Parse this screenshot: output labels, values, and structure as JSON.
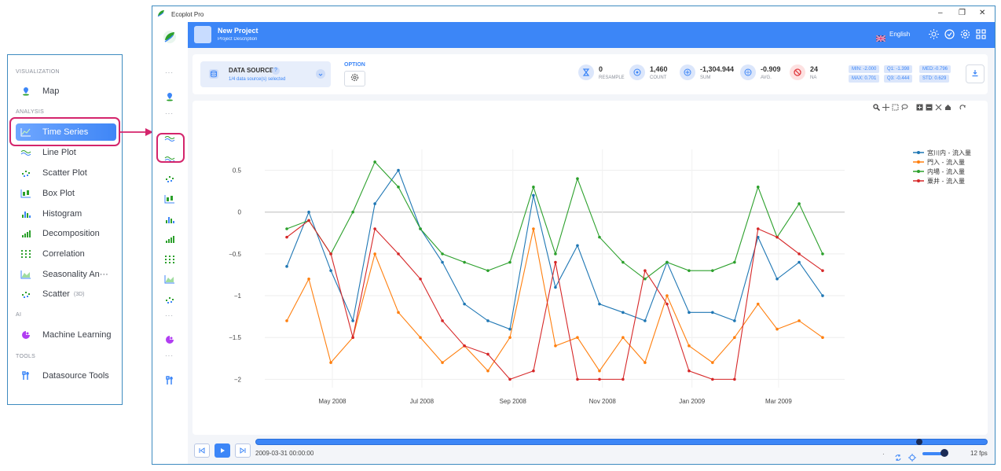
{
  "menu": {
    "sections": {
      "visualization": "VISUALIZATION",
      "analysis": "ANALYSIS",
      "ai": "AI",
      "tools": "TOOLS"
    },
    "items": [
      {
        "label": "Map",
        "icon": "map-pin-icon"
      },
      {
        "label": "Time Series",
        "icon": "time-series-icon",
        "active": true
      },
      {
        "label": "Line Plot",
        "icon": "line-plot-icon"
      },
      {
        "label": "Scatter Plot",
        "icon": "scatter-plot-icon"
      },
      {
        "label": "Box Plot",
        "icon": "box-plot-icon"
      },
      {
        "label": "Histogram",
        "icon": "histogram-icon"
      },
      {
        "label": "Decomposition",
        "icon": "decomposition-icon"
      },
      {
        "label": "Correlation",
        "icon": "correlation-icon"
      },
      {
        "label": "Seasonality An···",
        "icon": "seasonality-icon"
      },
      {
        "label": "Scatter",
        "badge": "(3D)",
        "icon": "scatter-3d-icon"
      },
      {
        "label": "Machine Learning",
        "icon": "machine-learning-icon"
      },
      {
        "label": "Datasource Tools",
        "icon": "datasource-tools-icon"
      }
    ]
  },
  "window": {
    "title": "Ecoplot Pro",
    "controls": {
      "minimize": "–",
      "restore": "❐",
      "close": "✕"
    }
  },
  "header": {
    "project_title": "New Project",
    "project_desc": "Project Description",
    "language": "English"
  },
  "toolbar": {
    "datasource_title": "DATA SOURCE",
    "datasource_badge": "?",
    "datasource_sub": "1/4 data source(s) selected",
    "option_label": "OPTION",
    "stats": [
      {
        "value": "0",
        "label": "RESAMPLE"
      },
      {
        "value": "1,460",
        "label": "COUNT"
      },
      {
        "value": "-1,304.944",
        "label": "SUM"
      },
      {
        "value": "-0.909",
        "label": "AVG."
      },
      {
        "value": "24",
        "label": "NA"
      }
    ],
    "summary": {
      "min": "MIN: -2.000",
      "q1": "Q1: -1.398",
      "med": "MED:-0.796",
      "max": "MAX: 0.701",
      "q3": "Q3: -0.444",
      "std": "STD: 0.629"
    }
  },
  "player": {
    "timestamp": "2009-03-31 00:00:00",
    "fps": "12 fps"
  },
  "colors": {
    "accent": "#3c86f7",
    "highlight": "#d4256c",
    "series_blue": "#1f77b4",
    "series_orange": "#ff7f0e",
    "series_green": "#2ca02c",
    "series_red": "#d62728"
  },
  "chart_data": {
    "type": "line",
    "title": "",
    "xlabel": "",
    "ylabel": "",
    "x_ticks": [
      "May 2008",
      "Jul 2008",
      "Sep 2008",
      "Nov 2008",
      "Jan 2009",
      "Mar 2009"
    ],
    "y_ticks": [
      0.5,
      0,
      -0.5,
      -1,
      -1.5,
      -2
    ],
    "y_tick_labels": [
      "0.5",
      "0",
      "−0.5",
      "−1",
      "−1.5",
      "−2"
    ],
    "ylim": [
      -2.1,
      0.75
    ],
    "legend_position": "top-right",
    "x": [
      "2008-03-31",
      "2008-04-15",
      "2008-04-30",
      "2008-05-15",
      "2008-05-30",
      "2008-06-15",
      "2008-06-30",
      "2008-07-15",
      "2008-07-30",
      "2008-08-15",
      "2008-08-30",
      "2008-09-15",
      "2008-09-30",
      "2008-10-15",
      "2008-10-30",
      "2008-11-15",
      "2008-11-30",
      "2008-12-15",
      "2008-12-30",
      "2009-01-15",
      "2009-01-30",
      "2009-02-15",
      "2009-02-28",
      "2009-03-15",
      "2009-03-31"
    ],
    "series": [
      {
        "name": "宮川内 - 流入量",
        "color": "#1f77b4",
        "values": [
          -0.65,
          0.0,
          -0.7,
          -1.3,
          0.1,
          0.5,
          -0.2,
          -0.6,
          -1.1,
          -1.3,
          -1.4,
          0.2,
          -0.9,
          -0.4,
          -1.1,
          -1.2,
          -1.3,
          -0.6,
          -1.2,
          -1.2,
          -1.3,
          -0.3,
          -0.8,
          -0.6,
          -1.0
        ]
      },
      {
        "name": "門入 - 流入量",
        "color": "#ff7f0e",
        "values": [
          -1.3,
          -0.8,
          -1.8,
          -1.5,
          -0.5,
          -1.2,
          -1.5,
          -1.8,
          -1.6,
          -1.9,
          -1.5,
          -0.2,
          -1.6,
          -1.5,
          -1.9,
          -1.5,
          -1.8,
          -1.0,
          -1.6,
          -1.8,
          -1.5,
          -1.1,
          -1.4,
          -1.3,
          -1.5
        ]
      },
      {
        "name": "内場 - 流入量",
        "color": "#2ca02c",
        "values": [
          -0.2,
          -0.1,
          -0.5,
          0.0,
          0.6,
          0.3,
          -0.2,
          -0.5,
          -0.6,
          -0.7,
          -0.6,
          0.3,
          -0.5,
          0.4,
          -0.3,
          -0.6,
          -0.8,
          -0.6,
          -0.7,
          -0.7,
          -0.6,
          0.3,
          -0.3,
          0.1,
          -0.5
        ]
      },
      {
        "name": "粟井 - 流入量",
        "color": "#d62728",
        "values": [
          -0.3,
          -0.1,
          -0.5,
          -1.5,
          -0.2,
          -0.5,
          -0.8,
          -1.3,
          -1.6,
          -1.7,
          -2.0,
          -1.9,
          -0.6,
          -2.0,
          -2.0,
          -2.0,
          -0.7,
          -1.1,
          -1.9,
          -2.0,
          -2.0,
          -0.2,
          -0.3,
          -0.5,
          -0.7
        ]
      }
    ]
  }
}
